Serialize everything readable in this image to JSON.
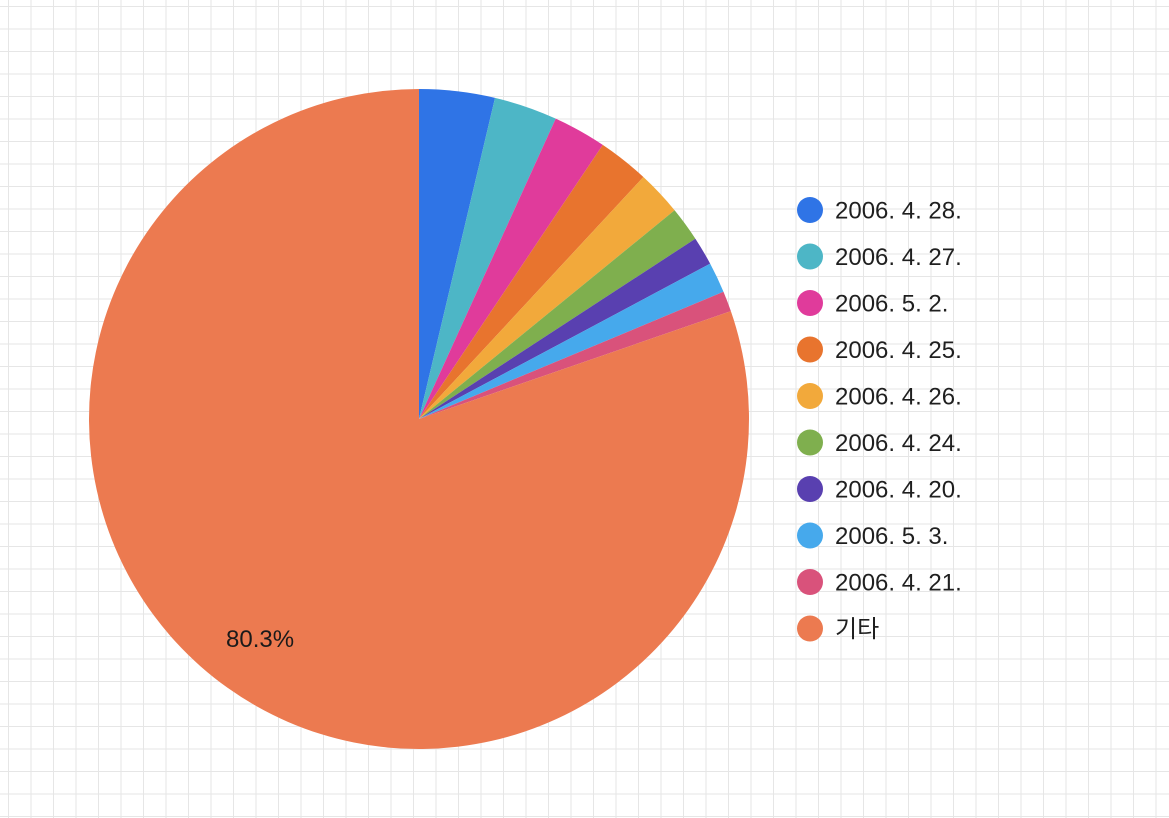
{
  "chart_data": {
    "type": "pie",
    "title": "",
    "legend_position": "right",
    "grid": true,
    "slices": [
      {
        "label": "2006. 4. 28.",
        "value": 3.7,
        "color": "#2f74e6"
      },
      {
        "label": "2006. 4. 27.",
        "value": 3.1,
        "color": "#4db6c6"
      },
      {
        "label": "2006. 5. 2.",
        "value": 2.6,
        "color": "#e03b9b"
      },
      {
        "label": "2006. 4. 25.",
        "value": 2.5,
        "color": "#e8742e"
      },
      {
        "label": "2006. 4. 26.",
        "value": 2.2,
        "color": "#f2a93b"
      },
      {
        "label": "2006. 4. 24.",
        "value": 1.7,
        "color": "#7faf4e"
      },
      {
        "label": "2006. 4. 20.",
        "value": 1.4,
        "color": "#5940b0"
      },
      {
        "label": "2006. 5. 3.",
        "value": 1.5,
        "color": "#46a9ec"
      },
      {
        "label": "2006. 4. 21.",
        "value": 1.0,
        "color": "#d9527b"
      },
      {
        "label": "기타",
        "value": 80.3,
        "color": "#ec7a50",
        "data_label": "80.3%"
      }
    ]
  }
}
